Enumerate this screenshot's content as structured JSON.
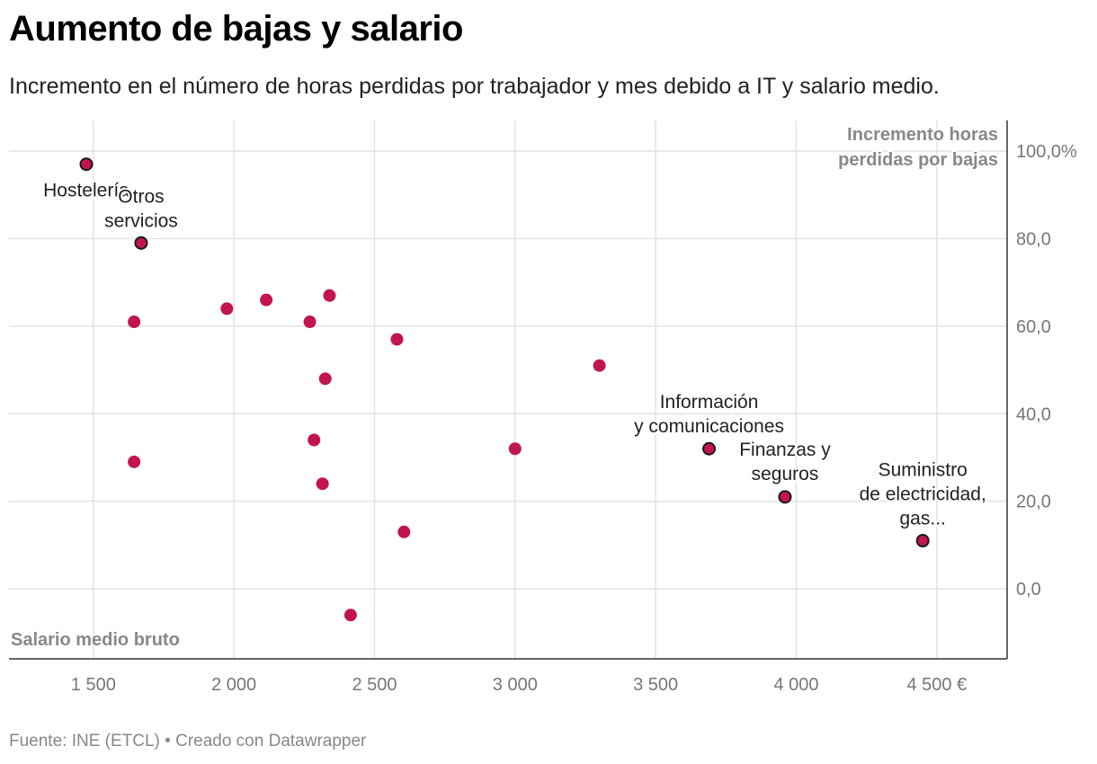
{
  "title": "Aumento de bajas y salario",
  "subtitle": "Incremento en el número de horas perdidas por trabajador y mes debido a IT y salario medio.",
  "footer": "Fuente: INE (ETCL) • Creado con Datawrapper",
  "chart_data": {
    "type": "scatter",
    "xlabel": "Salario medio bruto",
    "ylabel_lines": [
      "Incremento horas",
      "perdidas por bajas"
    ],
    "xlim": [
      1200,
      4750
    ],
    "ylim": [
      -16,
      107
    ],
    "x_ticks": [
      1500,
      2000,
      2500,
      3000,
      3500,
      4000,
      4500
    ],
    "x_tick_labels": [
      "1 500",
      "2 000",
      "2 500",
      "3 000",
      "3 500",
      "4 000",
      "4 500 €"
    ],
    "y_ticks": [
      0,
      20,
      40,
      60,
      80,
      100
    ],
    "y_tick_labels": [
      "0,0",
      "20,0",
      "40,0",
      "60,0",
      "80,0",
      "100,0%"
    ],
    "color": "#c2154d",
    "highlight_stroke": "#1a1a1a",
    "grid": true,
    "points": [
      {
        "x": 1475,
        "y": 97,
        "label_lines": [
          "Hostelería"
        ],
        "highlight": true
      },
      {
        "x": 1670,
        "y": 79,
        "label_lines": [
          "Otros",
          "servicios"
        ],
        "highlight": true
      },
      {
        "x": 1645,
        "y": 61,
        "label_lines": []
      },
      {
        "x": 1645,
        "y": 29,
        "label_lines": []
      },
      {
        "x": 1975,
        "y": 64,
        "label_lines": []
      },
      {
        "x": 2115,
        "y": 66,
        "label_lines": []
      },
      {
        "x": 2270,
        "y": 61,
        "label_lines": []
      },
      {
        "x": 2340,
        "y": 67,
        "label_lines": []
      },
      {
        "x": 2325,
        "y": 48,
        "label_lines": []
      },
      {
        "x": 2285,
        "y": 34,
        "label_lines": []
      },
      {
        "x": 2315,
        "y": 24,
        "label_lines": []
      },
      {
        "x": 2415,
        "y": -6,
        "label_lines": []
      },
      {
        "x": 2580,
        "y": 57,
        "label_lines": []
      },
      {
        "x": 2605,
        "y": 13,
        "label_lines": []
      },
      {
        "x": 3000,
        "y": 32,
        "label_lines": []
      },
      {
        "x": 3300,
        "y": 51,
        "label_lines": []
      },
      {
        "x": 3690,
        "y": 32,
        "label_lines": [
          "Información",
          "y comunicaciones"
        ],
        "highlight": true
      },
      {
        "x": 3960,
        "y": 21,
        "label_lines": [
          "Finanzas y",
          "seguros"
        ],
        "highlight": true
      },
      {
        "x": 4450,
        "y": 11,
        "label_lines": [
          "Suministro",
          "de electricidad,",
          "gas..."
        ],
        "highlight": true
      }
    ]
  }
}
